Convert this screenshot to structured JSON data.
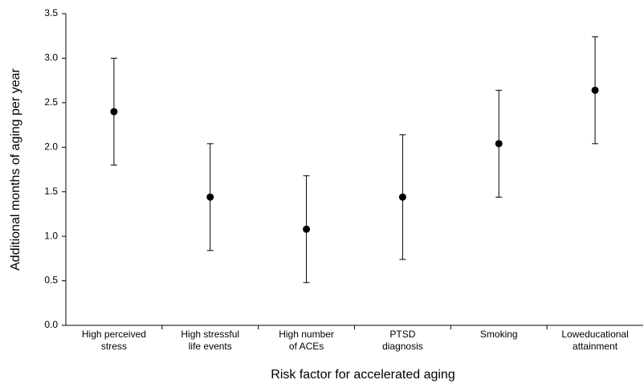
{
  "chart_data": {
    "type": "errorbar",
    "x_label": "Risk factor for accelerated aging",
    "y_label": "Additional months of aging per year",
    "categories": [
      "High perceived\nstress",
      "High stressful\nlife events",
      "High number\nof ACEs",
      "PTSD\ndiagnosis",
      "Smoking",
      "Loweducational\nattainment"
    ],
    "values": [
      2.4,
      1.44,
      1.08,
      1.44,
      2.04,
      2.64
    ],
    "errors": [
      0.6,
      0.6,
      0.6,
      0.7,
      0.6,
      0.6
    ],
    "color": "#000000",
    "ylim": [
      0,
      3.5
    ],
    "yticks": [
      {
        "value": 0,
        "label": "0.0"
      },
      0.5,
      {
        "value": 1,
        "label": "1.0"
      },
      1.5,
      {
        "value": 2,
        "label": "2.0"
      },
      2.5,
      {
        "value": 3,
        "label": "3.0"
      },
      3.5
    ]
  }
}
